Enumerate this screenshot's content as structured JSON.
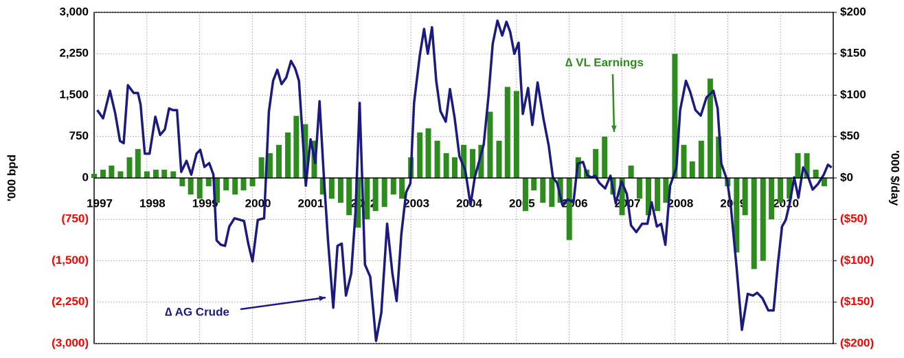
{
  "chart_data": {
    "type": "combo",
    "y_label": "'000 bpd",
    "y2_label": "'000 $/day",
    "xlim": [
      1997,
      2011
    ],
    "xticks": [
      1997,
      1998,
      1999,
      2000,
      2001,
      2002,
      2003,
      2004,
      2005,
      2006,
      2007,
      2008,
      2009,
      2010
    ],
    "ylim": [
      -3000,
      3000
    ],
    "yticks": [
      {
        "value": -3000,
        "label": "(3,000)"
      },
      {
        "value": -2250,
        "label": "(2,250)"
      },
      {
        "value": -1500,
        "label": "(1,500)"
      },
      {
        "value": -750,
        "label": "(750)"
      },
      0,
      750,
      {
        "value": 1500,
        "label": "1,500"
      },
      {
        "value": 2250,
        "label": "2,250"
      },
      {
        "value": 3000,
        "label": "3,000"
      }
    ],
    "y2lim": [
      -200,
      200
    ],
    "y2ticks": [
      {
        "value": -200,
        "label": "($200)"
      },
      {
        "value": -150,
        "label": "($150)"
      },
      {
        "value": -100,
        "label": "($100)"
      },
      {
        "value": -50,
        "label": "($50)"
      },
      {
        "value": 0,
        "label": "$0"
      },
      {
        "value": 50,
        "label": "$50"
      },
      {
        "value": 100,
        "label": "$100"
      },
      {
        "value": 150,
        "label": "$150"
      },
      {
        "value": 200,
        "label": "$200"
      }
    ],
    "grid": true,
    "tick_color": "#000000",
    "negative_tick_color": "#ff0000",
    "series": [
      {
        "name": "∆ VL Earnings",
        "type": "bar",
        "axis": "y2",
        "color": "#2e8b1e",
        "x": [
          1997.0,
          1997.17,
          1997.33,
          1997.5,
          1997.67,
          1997.83,
          1998.0,
          1998.17,
          1998.33,
          1998.5,
          1998.67,
          1998.83,
          1999.0,
          1999.17,
          1999.33,
          1999.5,
          1999.67,
          1999.83,
          2000.0,
          2000.17,
          2000.33,
          2000.5,
          2000.67,
          2000.83,
          2001.0,
          2001.17,
          2001.33,
          2001.5,
          2001.67,
          2001.83,
          2002.0,
          2002.17,
          2002.33,
          2002.5,
          2002.67,
          2002.83,
          2003.0,
          2003.17,
          2003.33,
          2003.5,
          2003.67,
          2003.83,
          2004.0,
          2004.17,
          2004.33,
          2004.5,
          2004.67,
          2004.83,
          2005.0,
          2005.17,
          2005.33,
          2005.5,
          2005.67,
          2005.83,
          2006.0,
          2006.17,
          2006.33,
          2006.5,
          2006.67,
          2006.83,
          2007.0,
          2007.17,
          2007.33,
          2007.5,
          2007.67,
          2007.83,
          2008.0,
          2008.17,
          2008.33,
          2008.5,
          2008.67,
          2008.83,
          2009.0,
          2009.17,
          2009.33,
          2009.5,
          2009.67,
          2009.83,
          2010.0,
          2010.17,
          2010.33,
          2010.5,
          2010.67,
          2010.83
        ],
        "values": [
          5,
          10,
          15,
          8,
          25,
          35,
          8,
          10,
          10,
          8,
          -10,
          -20,
          -25,
          -10,
          -30,
          -15,
          -20,
          -15,
          -10,
          25,
          30,
          40,
          55,
          75,
          65,
          45,
          -20,
          -25,
          -30,
          -45,
          -60,
          -50,
          -40,
          -35,
          -20,
          -25,
          25,
          55,
          60,
          45,
          30,
          25,
          40,
          35,
          40,
          80,
          45,
          110,
          105,
          -40,
          -15,
          -30,
          -35,
          -30,
          -75,
          25,
          10,
          35,
          50,
          -20,
          -45,
          15,
          -25,
          -45,
          -40,
          -30,
          150,
          40,
          20,
          45,
          120,
          50,
          -10,
          -90,
          -45,
          -110,
          -100,
          -50,
          -30,
          -25,
          30,
          30,
          10,
          -10
        ]
      },
      {
        "name": "∆ AG Crude",
        "type": "line",
        "axis": "y",
        "color": "#1a1a80",
        "x": [
          1997.06,
          1997.17,
          1997.3,
          1997.4,
          1997.49,
          1997.56,
          1997.64,
          1997.75,
          1997.83,
          1997.88,
          1997.96,
          1998.05,
          1998.16,
          1998.25,
          1998.34,
          1998.42,
          1998.49,
          1998.57,
          1998.65,
          1998.75,
          1998.84,
          1998.94,
          1999.01,
          1999.09,
          1999.18,
          1999.26,
          1999.32,
          1999.4,
          1999.48,
          1999.56,
          1999.66,
          1999.77,
          1999.84,
          1999.92,
          2000.0,
          2000.1,
          2000.22,
          2000.31,
          2000.39,
          2000.47,
          2000.55,
          2000.64,
          2000.73,
          2000.81,
          2000.88,
          2001.01,
          2001.1,
          2001.19,
          2001.27,
          2001.35,
          2001.43,
          2001.53,
          2001.61,
          2001.69,
          2001.77,
          2001.87,
          2001.95,
          2002.03,
          2002.13,
          2002.23,
          2002.34,
          2002.44,
          2002.55,
          2002.65,
          2002.73,
          2002.82,
          2002.91,
          2002.99,
          2003.06,
          2003.17,
          2003.25,
          2003.32,
          2003.4,
          2003.48,
          2003.56,
          2003.66,
          2003.74,
          2003.83,
          2003.92,
          2004.03,
          2004.13,
          2004.21,
          2004.29,
          2004.38,
          2004.47,
          2004.55,
          2004.64,
          2004.73,
          2004.81,
          2004.88,
          2004.96,
          2005.04,
          2005.12,
          2005.22,
          2005.3,
          2005.4,
          2005.51,
          2005.61,
          2005.69,
          2005.77,
          2005.87,
          2005.97,
          2006.08,
          2006.16,
          2006.26,
          2006.34,
          2006.42,
          2006.49,
          2006.57,
          2006.68,
          2006.78,
          2006.88,
          2006.99,
          2007.09,
          2007.17,
          2007.27,
          2007.38,
          2007.48,
          2007.56,
          2007.66,
          2007.74,
          2007.82,
          2007.91,
          2008.03,
          2008.1,
          2008.21,
          2008.29,
          2008.39,
          2008.49,
          2008.6,
          2008.73,
          2008.81,
          2008.88,
          2008.99,
          2009.06,
          2009.17,
          2009.27,
          2009.38,
          2009.48,
          2009.56,
          2009.66,
          2009.77,
          2009.87,
          2009.95,
          2010.03,
          2010.1,
          2010.18,
          2010.26,
          2010.34,
          2010.43,
          2010.51,
          2010.61,
          2010.71,
          2010.82,
          2010.9,
          2010.97
        ],
        "values": [
          1230,
          1080,
          1580,
          1170,
          670,
          630,
          1680,
          1540,
          1540,
          1330,
          440,
          440,
          1110,
          780,
          880,
          1260,
          1230,
          1230,
          110,
          310,
          60,
          440,
          510,
          200,
          270,
          60,
          -1130,
          -1210,
          -1230,
          -880,
          -730,
          -760,
          -780,
          -1190,
          -1510,
          -760,
          -730,
          1200,
          1760,
          1960,
          1700,
          1820,
          2120,
          1980,
          1760,
          -140,
          700,
          270,
          1390,
          50,
          -1130,
          -2350,
          -1230,
          -1190,
          -2130,
          -1730,
          -630,
          1360,
          -1570,
          -1790,
          -2950,
          -2440,
          -830,
          -1730,
          -2230,
          -1010,
          -260,
          -100,
          1360,
          2230,
          2700,
          2250,
          2730,
          1760,
          1210,
          1020,
          1610,
          1080,
          390,
          140,
          -490,
          10,
          290,
          610,
          1480,
          2430,
          2850,
          2580,
          2830,
          2650,
          2250,
          2450,
          1160,
          1630,
          960,
          1730,
          1080,
          590,
          10,
          -90,
          -490,
          -390,
          -440,
          260,
          290,
          50,
          10,
          40,
          -90,
          -190,
          40,
          -460,
          -60,
          -290,
          -860,
          -980,
          -830,
          -830,
          -440,
          -880,
          -830,
          -1210,
          -140,
          190,
          1230,
          1760,
          1560,
          1230,
          1130,
          1460,
          1580,
          1260,
          260,
          -40,
          -510,
          -1630,
          -2750,
          -2100,
          -2130,
          -2080,
          -2180,
          -2400,
          -2400,
          -1570,
          -880,
          -760,
          -440,
          10,
          -360,
          190,
          60,
          -210,
          -110,
          60,
          240,
          190
        ]
      }
    ]
  }
}
